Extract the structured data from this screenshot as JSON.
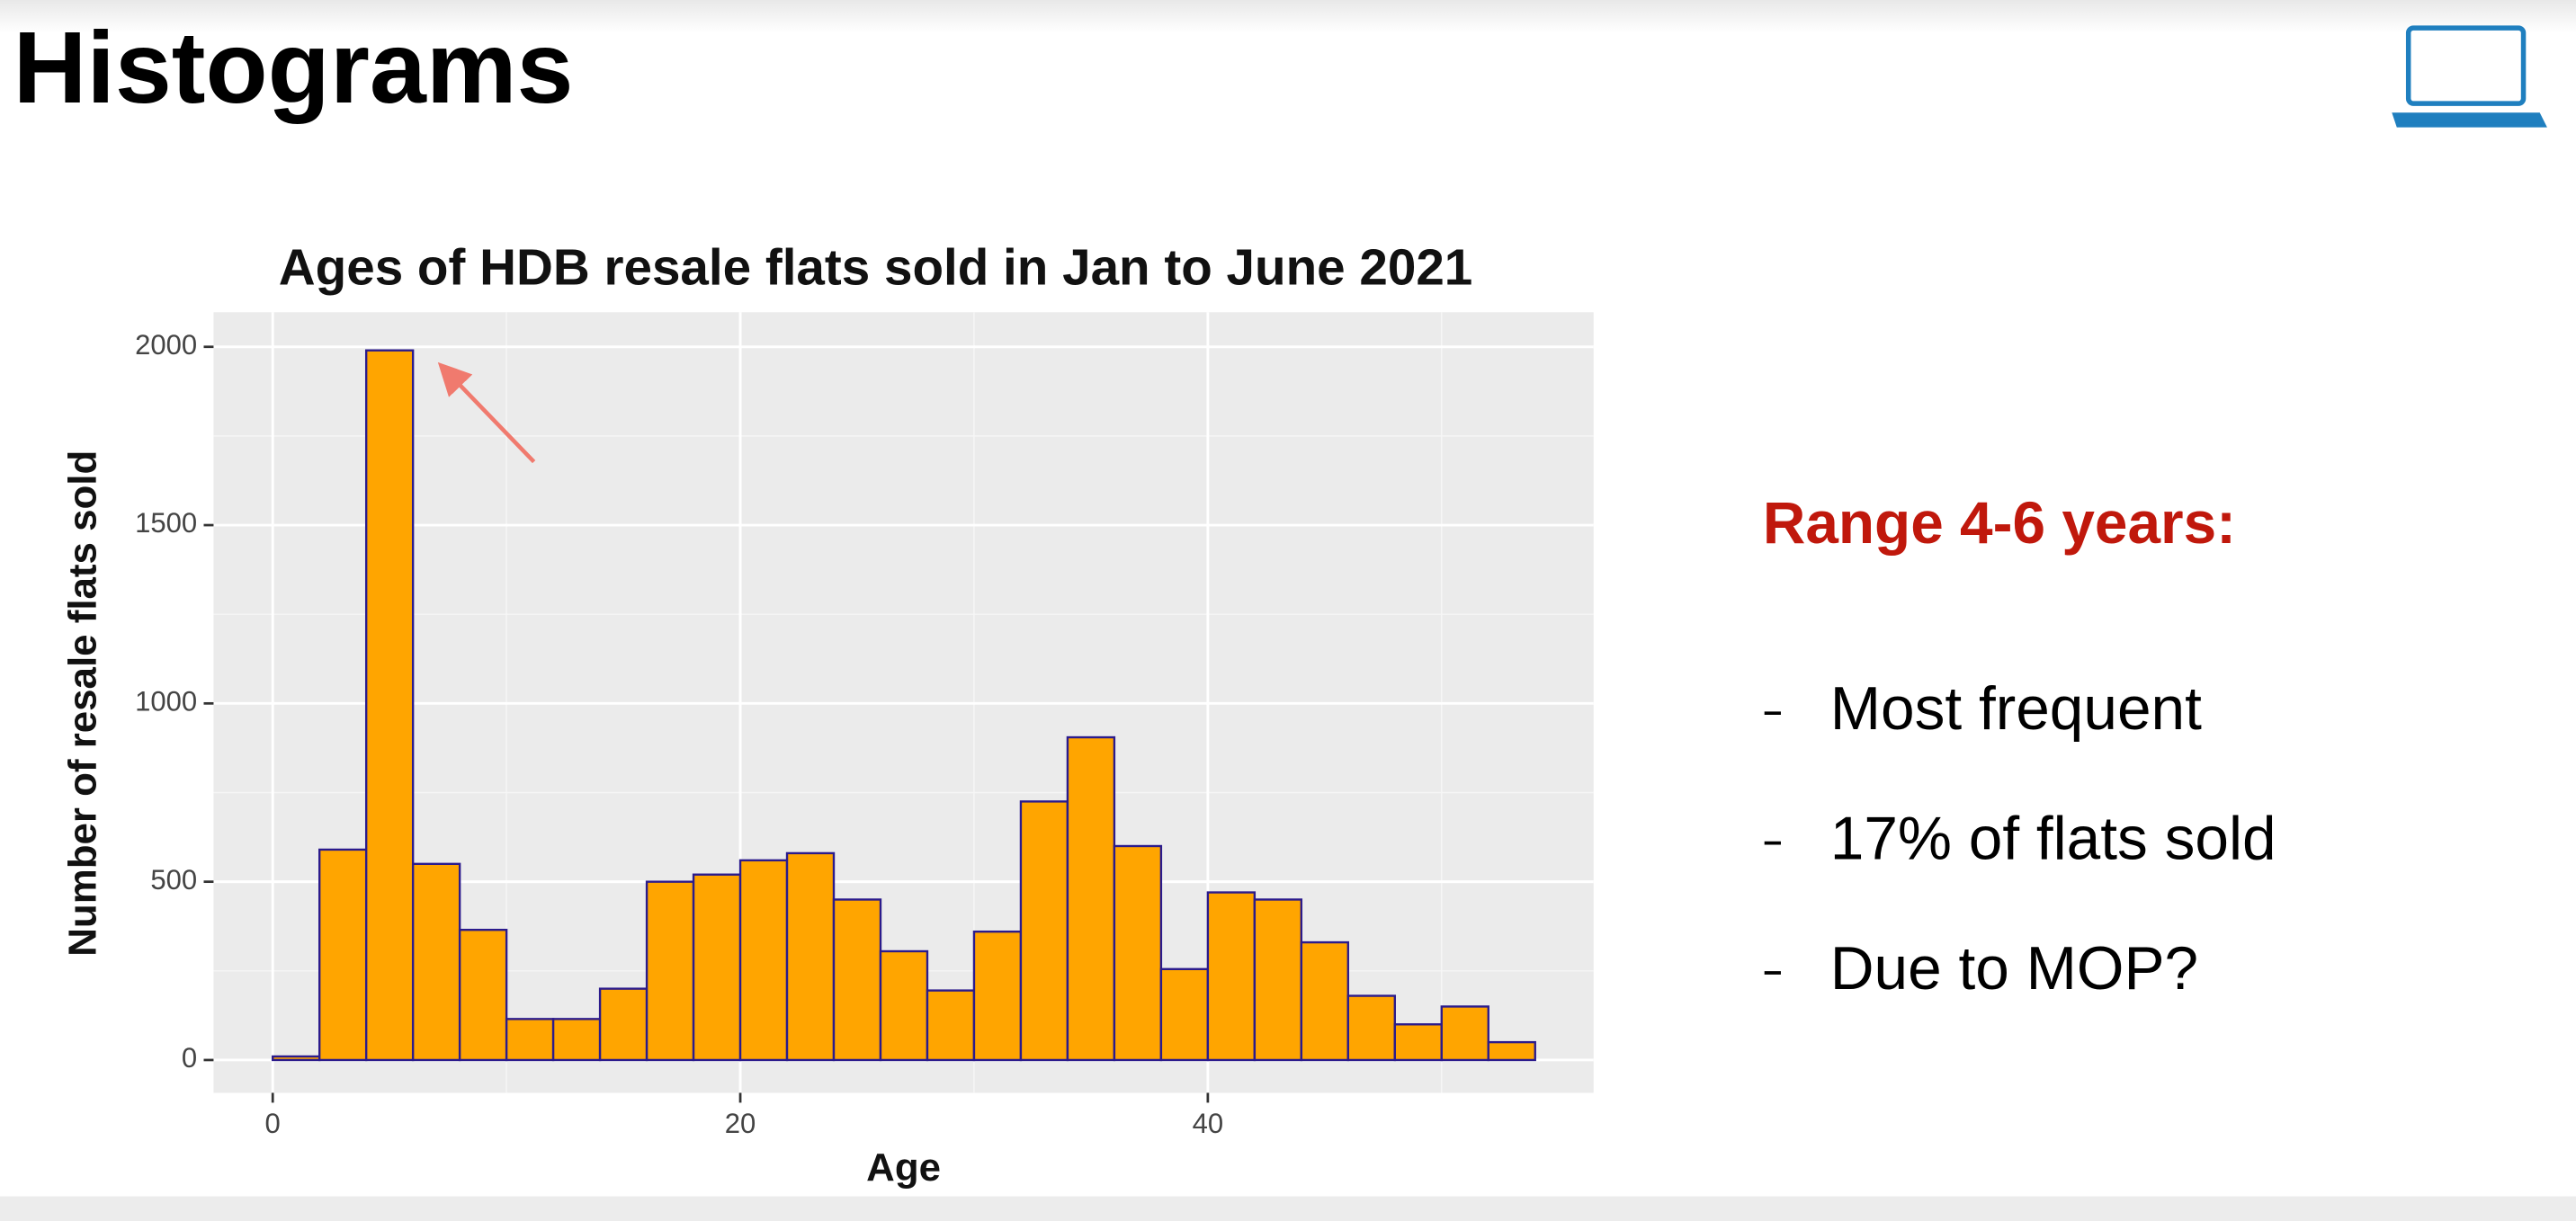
{
  "header": {
    "title": "Histograms"
  },
  "chart_data": {
    "type": "histogram",
    "title": "Ages of HDB resale flats sold in Jan to June 2021",
    "xlabel": "Age",
    "ylabel": "Number of resale flats sold",
    "bins": [
      0,
      2,
      4,
      6,
      8,
      10,
      12,
      14,
      16,
      18,
      20,
      22,
      24,
      26,
      28,
      30,
      32,
      34,
      36,
      38,
      40,
      42,
      44,
      46,
      48,
      50,
      52,
      54
    ],
    "values": [
      10,
      590,
      1990,
      550,
      365,
      115,
      115,
      200,
      500,
      520,
      560,
      580,
      450,
      305,
      195,
      360,
      725,
      905,
      600,
      255,
      470,
      450,
      330,
      180,
      100,
      150,
      50
    ],
    "color": "#FFA500",
    "edge_color": "#2b1b8c",
    "xlim": [
      -2.53,
      56.5
    ],
    "ylim": [
      -92,
      2097
    ],
    "xticks": [
      0,
      20,
      40
    ],
    "yticks": [
      0,
      500,
      1000,
      1500,
      2000
    ],
    "xminor": [
      10,
      30,
      50
    ],
    "yminor": [
      250,
      750,
      1250,
      1750
    ],
    "grid": true
  },
  "notes": {
    "heading": "Range 4-6 years:",
    "bullets": [
      "Most frequent",
      "17% of flats sold",
      "Due to MOP?"
    ]
  }
}
